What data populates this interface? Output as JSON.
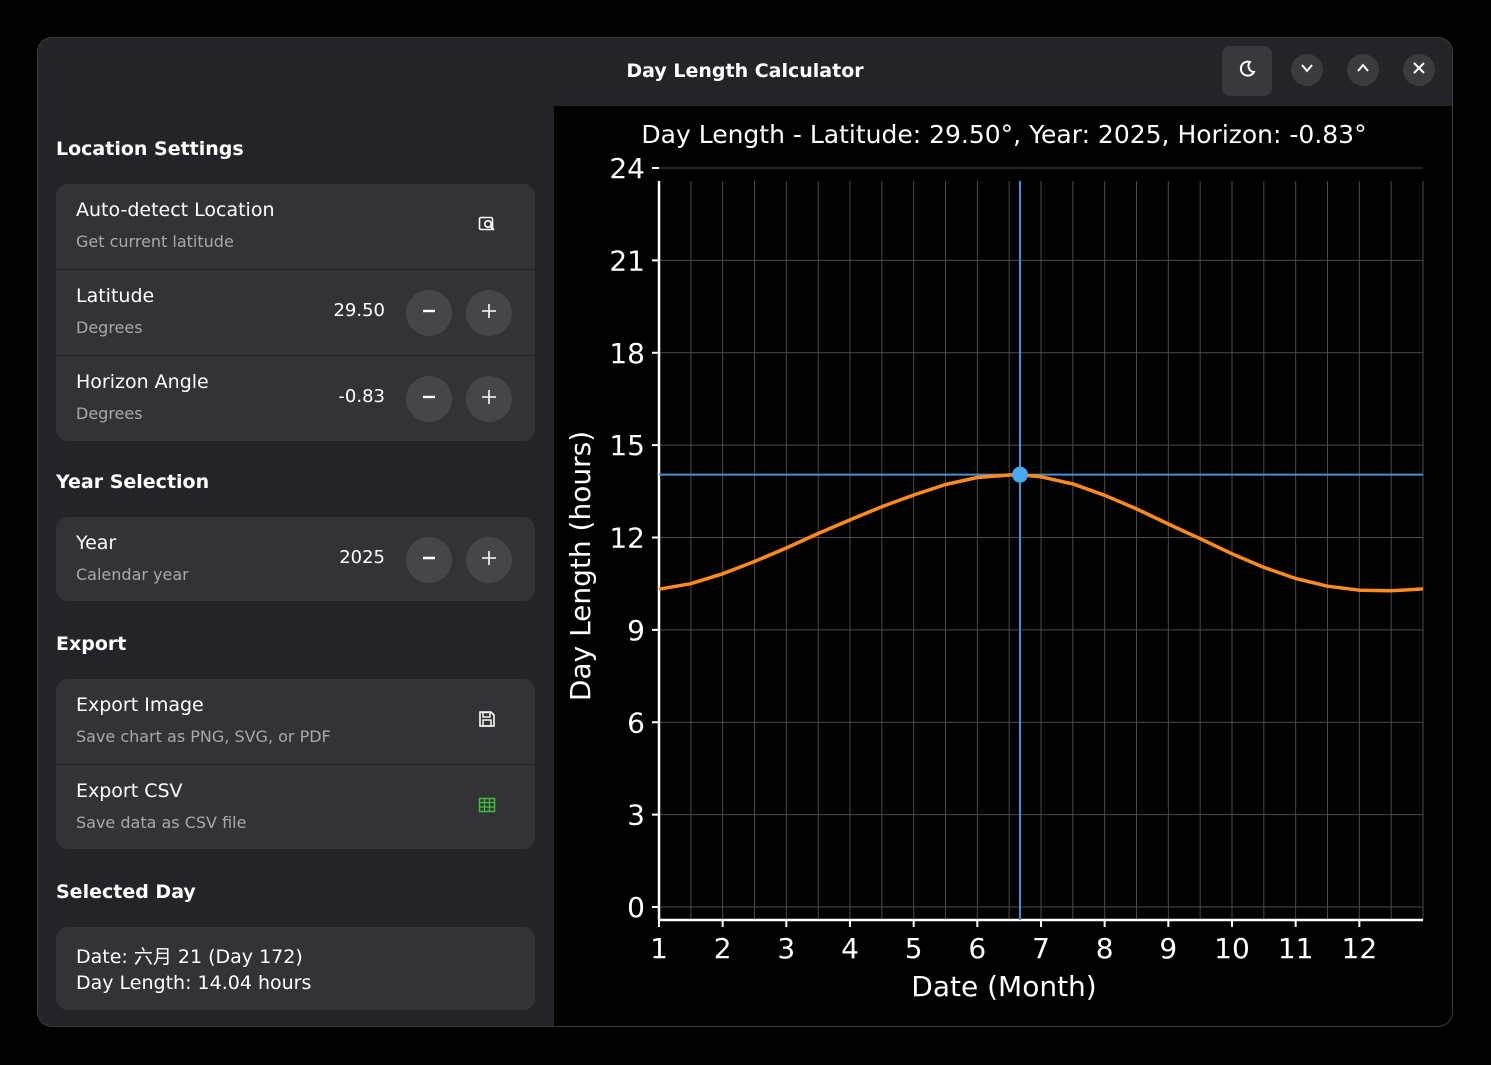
{
  "window": {
    "title": "Day Length Calculator"
  },
  "titlebar": {
    "buttons": [
      {
        "icon": "moon-icon"
      },
      {
        "icon": "chevron-down-icon"
      },
      {
        "icon": "chevron-up-icon"
      },
      {
        "icon": "close-icon"
      }
    ]
  },
  "sidebar": {
    "location": {
      "heading": "Location Settings",
      "auto_detect": {
        "title": "Auto-detect Location",
        "subtitle": "Get current latitude",
        "icon": "location-search-icon"
      },
      "latitude": {
        "title": "Latitude",
        "subtitle": "Degrees",
        "value": "29.50"
      },
      "horizon": {
        "title": "Horizon Angle",
        "subtitle": "Degrees",
        "value": "-0.83"
      }
    },
    "year_section": {
      "heading": "Year Selection",
      "year": {
        "title": "Year",
        "subtitle": "Calendar year",
        "value": "2025"
      }
    },
    "export": {
      "heading": "Export",
      "image": {
        "title": "Export Image",
        "subtitle": "Save chart as PNG, SVG, or PDF",
        "icon": "save-icon"
      },
      "csv": {
        "title": "Export CSV",
        "subtitle": "Save data as CSV file",
        "icon": "spreadsheet-icon"
      }
    },
    "selected_day": {
      "heading": "Selected Day",
      "date_line": "Date: 六月 21 (Day 172)",
      "length_line": "Day Length: 14.04 hours"
    }
  },
  "colors": {
    "curve": "#ff8a1e",
    "crosshair": "#4a8fd0",
    "marker": "#4aa8f0",
    "csv_icon": "#3ec23e"
  },
  "chart_data": {
    "type": "line",
    "title": "Day Length - Latitude: 29.50°, Year: 2025, Horizon: -0.83°",
    "xlabel": "Date (Month)",
    "ylabel": "Day Length (hours)",
    "xlim": [
      1,
      13
    ],
    "ylim": [
      0,
      24
    ],
    "x_ticks": [
      "1",
      "2",
      "3",
      "4",
      "5",
      "6",
      "7",
      "8",
      "9",
      "10",
      "11",
      "12"
    ],
    "y_ticks": [
      "0",
      "3",
      "6",
      "9",
      "12",
      "15",
      "18",
      "21",
      "24"
    ],
    "grid": true,
    "series": [
      {
        "x": [
          1.0,
          1.5,
          2.0,
          2.5,
          3.0,
          3.5,
          4.0,
          4.5,
          5.0,
          5.5,
          6.0,
          6.5,
          6.67,
          7.0,
          7.5,
          8.0,
          8.5,
          9.0,
          9.5,
          10.0,
          10.5,
          11.0,
          11.5,
          12.0,
          12.5,
          13.0
        ],
        "values": [
          10.32,
          10.5,
          10.82,
          11.22,
          11.66,
          12.13,
          12.57,
          13.0,
          13.38,
          13.72,
          13.95,
          14.03,
          14.04,
          13.97,
          13.74,
          13.37,
          12.93,
          12.44,
          11.96,
          11.47,
          11.03,
          10.67,
          10.42,
          10.29,
          10.27,
          10.33
        ]
      }
    ],
    "selected": {
      "x": 6.67,
      "y": 14.04
    }
  }
}
